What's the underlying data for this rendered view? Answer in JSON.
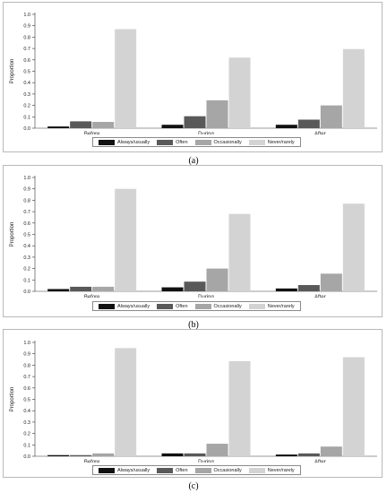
{
  "legend": [
    "Always/usually",
    "Often",
    "Occasionally",
    "Never/rarely"
  ],
  "colors": [
    "#111111",
    "#595959",
    "#a6a6a6",
    "#d3d3d3"
  ],
  "chart_data": [
    {
      "type": "bar",
      "caption": "(a)",
      "categories": [
        "Before",
        "During",
        "After"
      ],
      "ylabel": "Proportion",
      "ylim": [
        0,
        1
      ],
      "yticks": [
        "0.0",
        "0.1",
        "0.2",
        "0.3",
        "0.4",
        "0.5",
        "0.6",
        "0.7",
        "0.8",
        "0.9",
        "1.0"
      ],
      "series": [
        {
          "name": "Always/usually",
          "values": [
            0.015,
            0.03,
            0.03
          ]
        },
        {
          "name": "Often",
          "values": [
            0.06,
            0.105,
            0.075
          ]
        },
        {
          "name": "Occasionally",
          "values": [
            0.055,
            0.245,
            0.2
          ]
        },
        {
          "name": "Never/rarely",
          "values": [
            0.87,
            0.62,
            0.695
          ]
        }
      ],
      "legend_position": "bottom",
      "grid": false
    },
    {
      "type": "bar",
      "caption": "(b)",
      "categories": [
        "Before",
        "During",
        "After"
      ],
      "ylabel": "Proportion",
      "ylim": [
        0,
        1
      ],
      "yticks": [
        "0.0",
        "0.1",
        "0.2",
        "0.3",
        "0.4",
        "0.5",
        "0.6",
        "0.7",
        "0.8",
        "0.9",
        "1.0"
      ],
      "series": [
        {
          "name": "Always/usually",
          "values": [
            0.02,
            0.035,
            0.025
          ]
        },
        {
          "name": "Often",
          "values": [
            0.04,
            0.085,
            0.055
          ]
        },
        {
          "name": "Occasionally",
          "values": [
            0.04,
            0.2,
            0.155
          ]
        },
        {
          "name": "Never/rarely",
          "values": [
            0.9,
            0.68,
            0.77
          ]
        }
      ],
      "legend_position": "bottom",
      "grid": false
    },
    {
      "type": "bar",
      "caption": "(c)",
      "categories": [
        "Before",
        "During",
        "After"
      ],
      "ylabel": "Proportion",
      "ylim": [
        0,
        1
      ],
      "yticks": [
        "0.0",
        "0.1",
        "0.2",
        "0.3",
        "0.4",
        "0.5",
        "0.6",
        "0.7",
        "0.8",
        "0.9",
        "1.0"
      ],
      "series": [
        {
          "name": "Always/usually",
          "values": [
            0.01,
            0.025,
            0.015
          ]
        },
        {
          "name": "Often",
          "values": [
            0.01,
            0.025,
            0.025
          ]
        },
        {
          "name": "Occasionally",
          "values": [
            0.025,
            0.11,
            0.085
          ]
        },
        {
          "name": "Never/rarely",
          "values": [
            0.95,
            0.835,
            0.87
          ]
        }
      ],
      "legend_position": "bottom",
      "grid": false
    }
  ]
}
